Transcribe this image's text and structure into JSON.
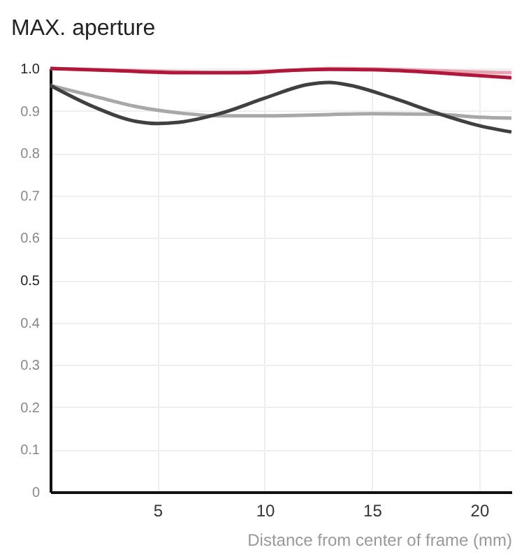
{
  "chart_data": {
    "type": "line",
    "title": "MAX. aperture",
    "xlabel": "Distance from center of frame (mm)",
    "xlim": [
      0,
      21.5
    ],
    "ylim": [
      0,
      1.0
    ],
    "xticks": [
      5,
      10,
      15,
      20
    ],
    "yticks": [
      {
        "value": 0,
        "label": "0"
      },
      0.1,
      0.2,
      0.3,
      0.4,
      0.5,
      0.6,
      0.7,
      0.8,
      0.9,
      {
        "value": 1.0,
        "label": "1.0"
      }
    ],
    "grid": true,
    "line_style": "solid",
    "marker": "none",
    "series": [
      {
        "color": "#e8a3b3",
        "x": [
          0,
          4,
          8,
          11,
          13,
          16,
          19,
          21.5
        ],
        "values": [
          1.0,
          0.995,
          0.99,
          0.995,
          1.0,
          0.998,
          0.993,
          0.99
        ]
      },
      {
        "color": "#b0173a",
        "x": [
          0,
          3,
          6,
          9,
          11,
          13,
          15,
          18,
          20,
          21.5
        ],
        "values": [
          1.0,
          0.995,
          0.99,
          0.99,
          0.995,
          0.998,
          0.997,
          0.99,
          0.983,
          0.978
        ]
      },
      {
        "color": "#a8a8a8",
        "x": [
          0,
          2,
          4,
          6,
          8,
          10,
          12,
          15,
          18,
          20,
          21.5
        ],
        "values": [
          0.96,
          0.935,
          0.91,
          0.895,
          0.888,
          0.888,
          0.89,
          0.893,
          0.892,
          0.885,
          0.883
        ]
      },
      {
        "color": "#404040",
        "x": [
          0,
          2,
          4,
          5,
          6,
          8,
          10,
          12,
          13,
          14,
          16,
          18,
          20,
          21.5
        ],
        "values": [
          0.96,
          0.91,
          0.875,
          0.87,
          0.873,
          0.895,
          0.93,
          0.962,
          0.967,
          0.96,
          0.93,
          0.895,
          0.865,
          0.85
        ]
      }
    ]
  }
}
